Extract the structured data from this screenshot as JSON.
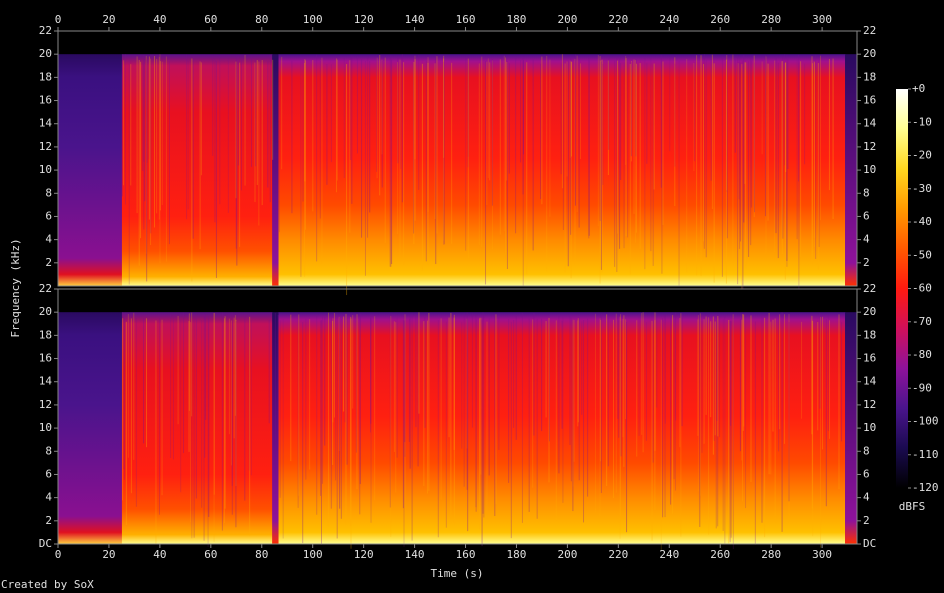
{
  "chart_data": {
    "type": "spectrogram",
    "x_label": "Time (s)",
    "y_label": "Frequency (kHz)",
    "credit": "Created by SoX",
    "xlim": [
      0,
      313.7
    ],
    "xticks": [
      0,
      20,
      40,
      60,
      80,
      100,
      120,
      140,
      160,
      180,
      200,
      220,
      240,
      260,
      280,
      300
    ],
    "panels": [
      {
        "ylim": [
          0,
          22
        ],
        "yticks": [
          2,
          4,
          6,
          8,
          10,
          12,
          14,
          16,
          18,
          20,
          22
        ]
      },
      {
        "ylim": [
          0,
          22
        ],
        "yticks": [
          {
            "value": 0,
            "label": "DC"
          },
          2,
          4,
          6,
          8,
          10,
          12,
          14,
          16,
          18,
          20,
          22
        ]
      }
    ],
    "colorbar": {
      "label": "dBFS",
      "lim": [
        -120,
        0
      ],
      "ticks": [
        {
          "value": 0,
          "label": "+0"
        },
        -10,
        -20,
        -30,
        -40,
        -50,
        -60,
        -70,
        -80,
        -90,
        -100,
        -110,
        -120
      ],
      "colors": [
        "#000000",
        "#1a0a50",
        "#4a148c",
        "#8e129a",
        "#d0105a",
        "#ff1a10",
        "#ff5a00",
        "#ff9a00",
        "#ffd820",
        "#ffff90",
        "#ffffff"
      ]
    }
  }
}
